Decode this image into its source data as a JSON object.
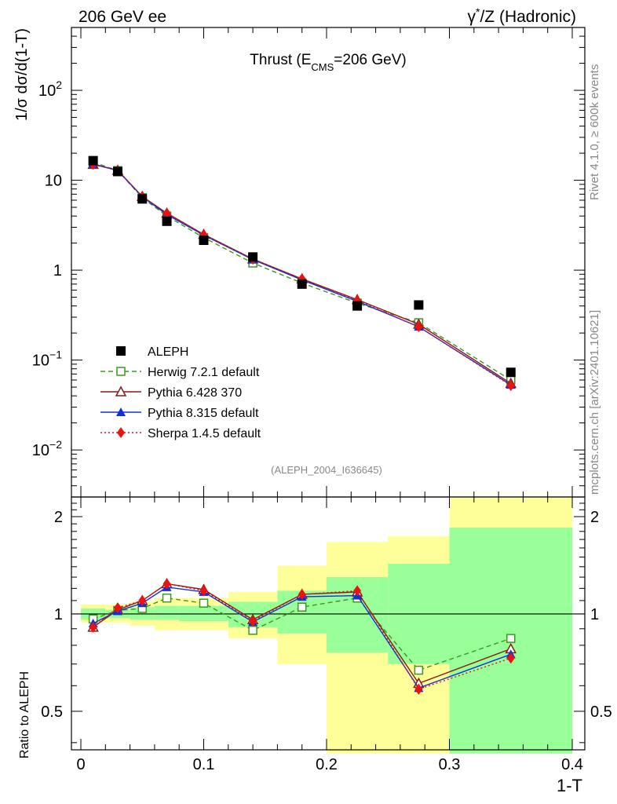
{
  "header": {
    "left": "206 GeV ee",
    "right_prefix": "γ",
    "right_sup": "*",
    "right_rest": "/Z (Hadronic)"
  },
  "side_text": {
    "rivet": "Rivet 4.1.0, ≥ 600k events",
    "mcplots": "mcplots.cern.ch [arXiv:2401.10621]"
  },
  "colors": {
    "data": "#000000",
    "herwig": "#3a9a1e",
    "pythia6": "#8b1a1a",
    "pythia8": "#1030d8",
    "sherpa": "#ee1111",
    "band_green": "#99ff99",
    "band_yellow": "#ffff99"
  },
  "chart_data": [
    {
      "type": "line",
      "title_main": "Thrust (E",
      "title_sub": "CMS",
      "title_end": "=206 GeV)",
      "analysis_id": "(ALEPH_2004_I636645)",
      "ylabel": "1/σ  dσ/d(1-T)",
      "yscale": "log",
      "ylim": [
        0.003,
        500
      ],
      "xlim": [
        -0.01,
        0.4
      ],
      "y_ticks": [
        {
          "value": 0.01,
          "base": "10",
          "exp": "−2"
        },
        {
          "value": 0.1,
          "base": "10",
          "exp": "−1"
        },
        {
          "value": 1,
          "base": "1",
          "exp": ""
        },
        {
          "value": 10,
          "base": "10",
          "exp": ""
        },
        {
          "value": 100,
          "base": "10",
          "exp": "2"
        }
      ],
      "x": [
        0.01,
        0.03,
        0.05,
        0.07,
        0.1,
        0.14,
        0.18,
        0.225,
        0.275,
        0.35
      ],
      "series": [
        {
          "name": "ALEPH",
          "key": "data",
          "marker": "square-filled",
          "dashed": false,
          "values": [
            16.5,
            12.5,
            6.2,
            3.5,
            2.15,
            1.4,
            0.7,
            0.4,
            0.41,
            0.073
          ]
        },
        {
          "name": "Herwig 7.2.1 default",
          "key": "herwig",
          "marker": "square-open",
          "dashed": "dashed",
          "values": [
            15.9,
            12.8,
            6.4,
            4.0,
            2.3,
            1.2,
            0.72,
            0.43,
            0.26,
            0.06
          ]
        },
        {
          "name": "Pythia 6.428 370",
          "key": "pythia6",
          "marker": "triangle-open",
          "dashed": false,
          "values": [
            15.0,
            12.9,
            6.6,
            4.3,
            2.5,
            1.33,
            0.8,
            0.47,
            0.25,
            0.055
          ]
        },
        {
          "name": "Pythia 8.315 default",
          "key": "pythia8",
          "marker": "triangle-filled",
          "dashed": false,
          "values": [
            15.2,
            12.8,
            6.55,
            4.15,
            2.45,
            1.31,
            0.78,
            0.45,
            0.235,
            0.053
          ]
        },
        {
          "name": "Sherpa 1.4.5 default",
          "key": "sherpa",
          "marker": "diamond-filled",
          "dashed": "dotted",
          "values": [
            15.0,
            12.9,
            6.6,
            4.3,
            2.48,
            1.32,
            0.8,
            0.46,
            0.235,
            0.052
          ]
        }
      ]
    },
    {
      "type": "line",
      "ylabel": "Ratio to ALEPH",
      "xlabel": "1-T",
      "yscale": "log",
      "ylim": [
        0.38,
        2.3
      ],
      "y_ticks": [
        0.5,
        1,
        2
      ],
      "x_ticks": [
        0,
        0.1,
        0.2,
        0.3,
        0.4
      ],
      "x_tick_labels": [
        "0",
        "0.1",
        "0.2",
        "0.3",
        "0.4"
      ],
      "y_tick_labels": [
        "0.5",
        "1",
        "2"
      ],
      "bins": [
        [
          0,
          0.02
        ],
        [
          0.02,
          0.04
        ],
        [
          0.04,
          0.06
        ],
        [
          0.06,
          0.08
        ],
        [
          0.08,
          0.12
        ],
        [
          0.12,
          0.16
        ],
        [
          0.16,
          0.2
        ],
        [
          0.2,
          0.25
        ],
        [
          0.25,
          0.3
        ],
        [
          0.3,
          0.4
        ]
      ],
      "band_green": [
        [
          0.96,
          1.04
        ],
        [
          0.97,
          1.03
        ],
        [
          0.96,
          1.05
        ],
        [
          0.96,
          1.06
        ],
        [
          0.95,
          1.06
        ],
        [
          0.91,
          1.09
        ],
        [
          0.87,
          1.18
        ],
        [
          0.76,
          1.3
        ],
        [
          0.7,
          1.43
        ],
        [
          0.37,
          1.85
        ]
      ],
      "band_yellow": [
        [
          0.94,
          1.07
        ],
        [
          0.94,
          1.07
        ],
        [
          0.92,
          1.09
        ],
        [
          0.89,
          1.12
        ],
        [
          0.89,
          1.12
        ],
        [
          0.84,
          1.17
        ],
        [
          0.7,
          1.41
        ],
        [
          0.37,
          1.67
        ],
        [
          0.37,
          1.74
        ],
        [
          0.37,
          2.3
        ]
      ],
      "x": [
        0.01,
        0.03,
        0.05,
        0.07,
        0.1,
        0.14,
        0.18,
        0.225,
        0.275,
        0.35
      ],
      "series": [
        {
          "name": "Herwig 7.2.1 default",
          "key": "herwig",
          "marker": "square-open",
          "dashed": "dashed",
          "values": [
            0.965,
            1.025,
            1.04,
            1.12,
            1.08,
            0.89,
            1.05,
            1.12,
            0.67,
            0.84
          ]
        },
        {
          "name": "Pythia 6.428 370",
          "key": "pythia6",
          "marker": "triangle-open",
          "dashed": false,
          "values": [
            0.91,
            1.03,
            1.1,
            1.24,
            1.19,
            0.96,
            1.15,
            1.17,
            0.61,
            0.78
          ]
        },
        {
          "name": "Pythia 8.315 default",
          "key": "pythia8",
          "marker": "triangle-filled",
          "dashed": false,
          "values": [
            0.935,
            1.02,
            1.08,
            1.21,
            1.17,
            0.945,
            1.13,
            1.14,
            0.59,
            0.75
          ]
        },
        {
          "name": "Sherpa 1.4.5 default",
          "key": "sherpa",
          "marker": "diamond-filled",
          "dashed": "dotted",
          "values": [
            0.91,
            1.045,
            1.1,
            1.24,
            1.18,
            0.95,
            1.15,
            1.18,
            0.585,
            0.73
          ]
        }
      ]
    }
  ]
}
